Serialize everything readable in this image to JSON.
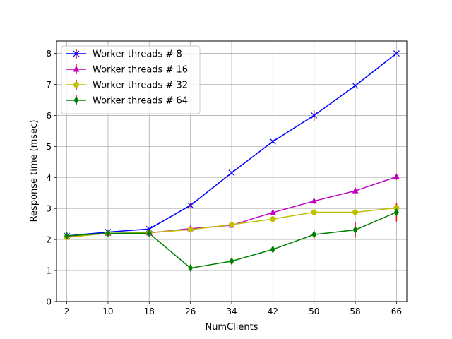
{
  "chart_data": {
    "type": "line",
    "title": "",
    "xlabel": "NumClients",
    "ylabel": "Response time (msec)",
    "x": [
      2,
      10,
      18,
      26,
      34,
      42,
      50,
      58,
      66
    ],
    "xticks": [
      "2",
      "10",
      "18",
      "26",
      "34",
      "42",
      "50",
      "58",
      "66"
    ],
    "yticks": [
      "0",
      "1",
      "2",
      "3",
      "4",
      "5",
      "6",
      "7",
      "8"
    ],
    "xlim": [
      0,
      68
    ],
    "ylim": [
      0,
      8.4
    ],
    "grid": true,
    "legend_position": "upper-left",
    "error_bar_color": "#ff0000",
    "series": [
      {
        "name": "Worker threads # 8",
        "color": "#0000ff",
        "marker": "x",
        "values": [
          2.12,
          2.24,
          2.34,
          3.1,
          4.15,
          5.16,
          6.0,
          6.96,
          8.0
        ],
        "errors": [
          0.03,
          0.03,
          0.04,
          0.06,
          0.05,
          0.05,
          0.17,
          0.03,
          0.03
        ]
      },
      {
        "name": "Worker threads # 16",
        "color": "#bf00bf",
        "marker": "triangle",
        "values": [
          2.1,
          2.2,
          2.21,
          2.35,
          2.46,
          2.87,
          3.24,
          3.57,
          4.02
        ],
        "errors": [
          0.03,
          0.03,
          0.04,
          0.05,
          0.06,
          0.06,
          0.1,
          0.05,
          0.1
        ]
      },
      {
        "name": "Worker threads # 32",
        "color": "#bfbf00",
        "marker": "circle",
        "values": [
          2.07,
          2.2,
          2.22,
          2.32,
          2.48,
          2.66,
          2.88,
          2.88,
          3.02
        ],
        "errors": [
          0.03,
          0.03,
          0.03,
          0.04,
          0.04,
          0.04,
          0.04,
          0.04,
          0.12
        ]
      },
      {
        "name": "Worker threads # 64",
        "color": "#008000",
        "marker": "diamond",
        "values": [
          2.12,
          2.2,
          2.2,
          1.08,
          1.3,
          1.68,
          2.16,
          2.31,
          2.88
        ],
        "errors": [
          0.03,
          0.03,
          0.06,
          0.05,
          0.05,
          0.05,
          0.16,
          0.25,
          0.3
        ]
      }
    ]
  }
}
